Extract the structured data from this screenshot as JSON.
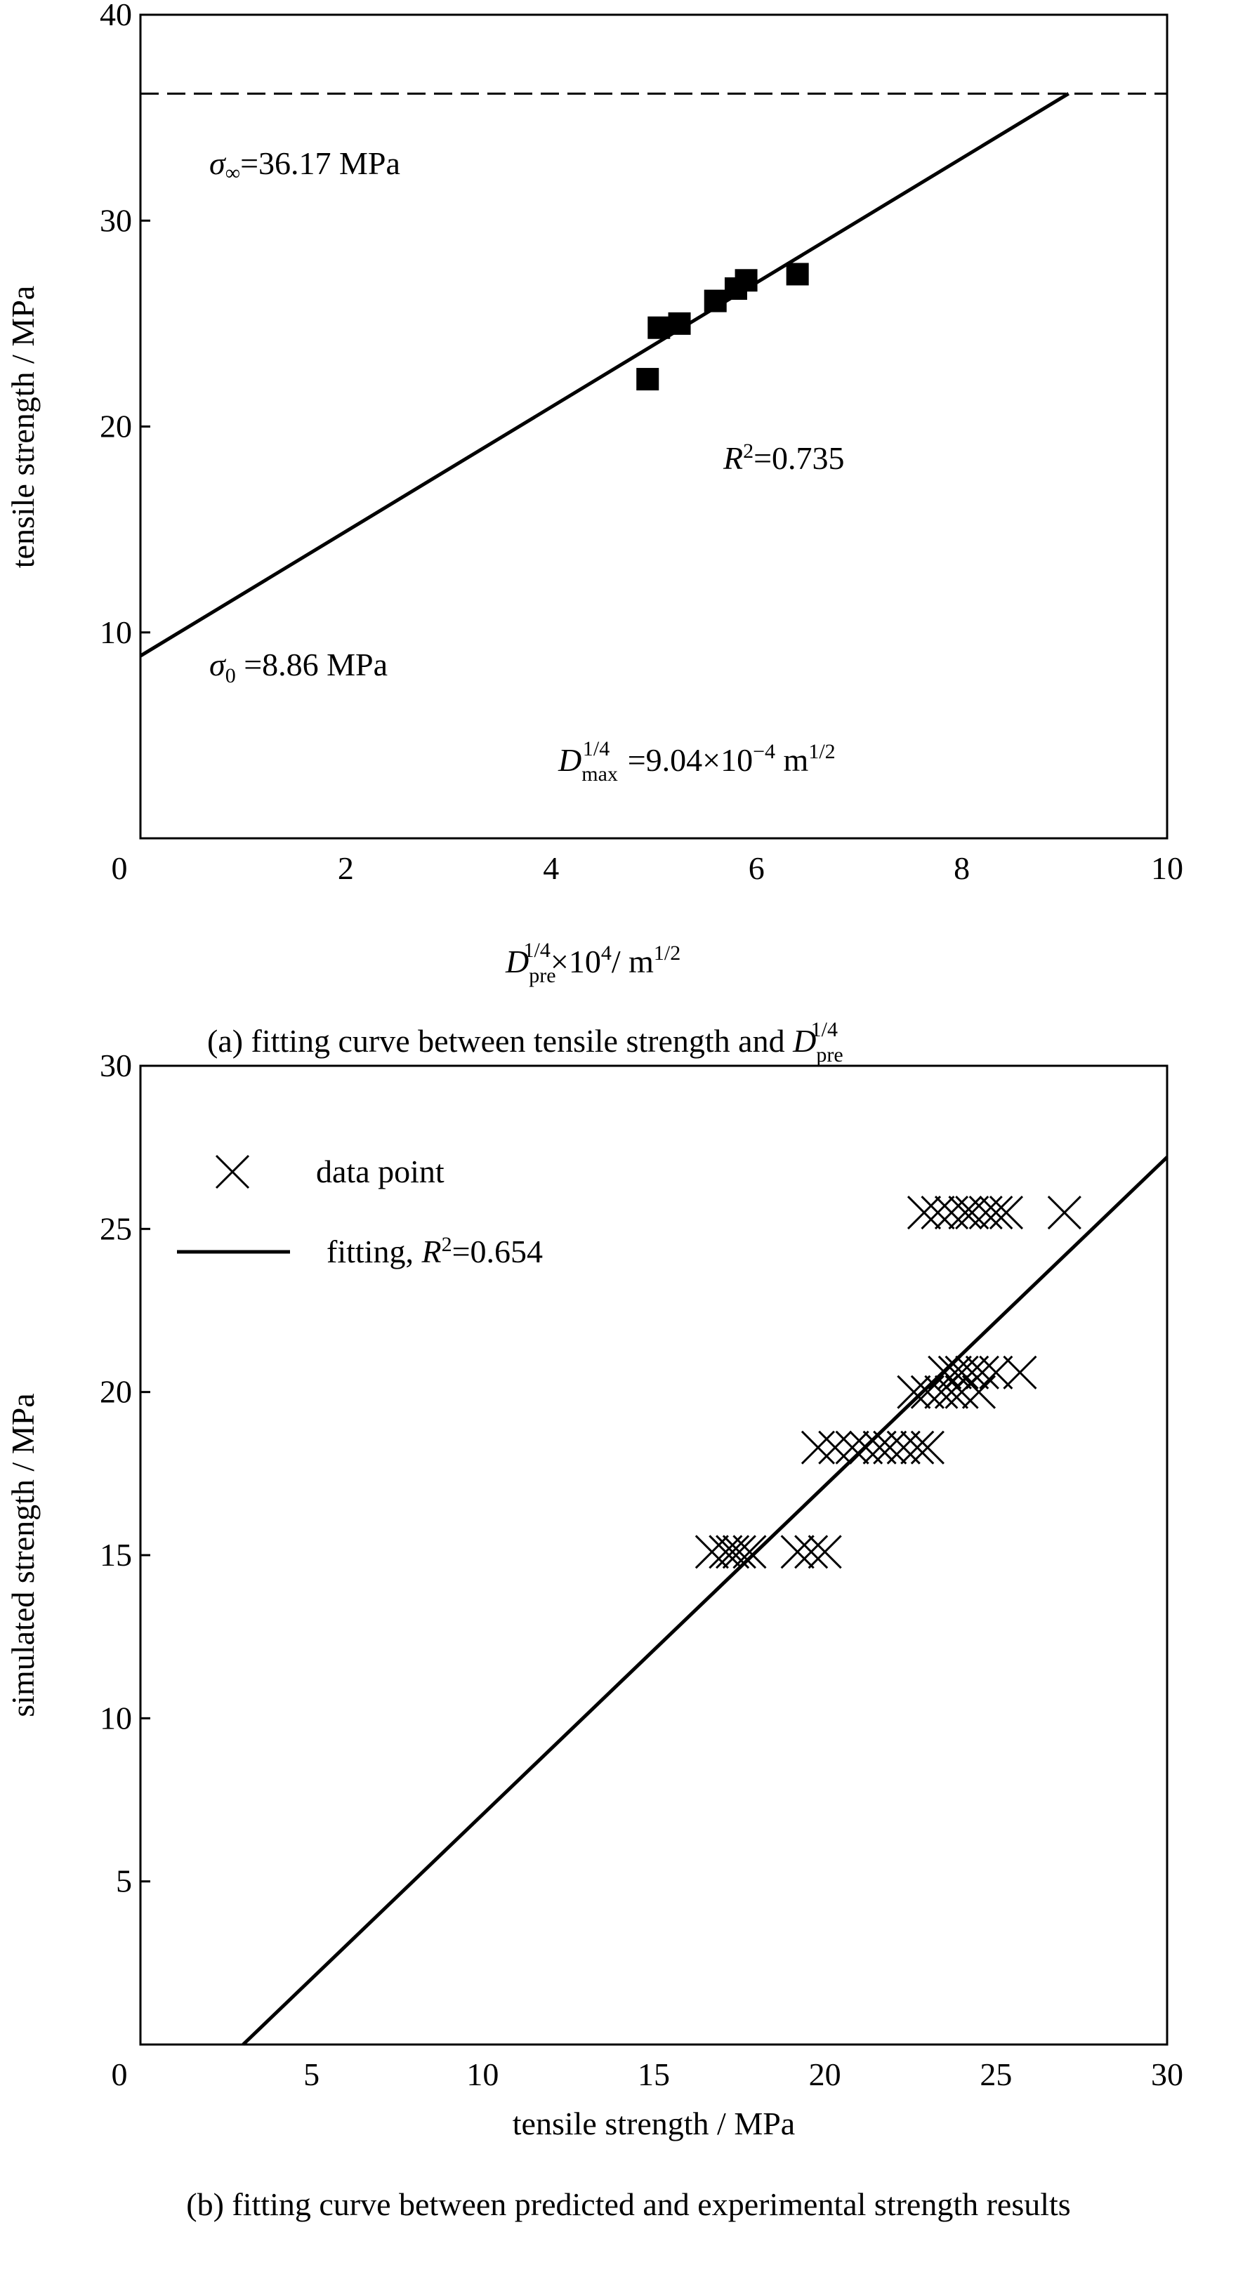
{
  "chart_data": [
    {
      "type": "scatter",
      "title": "(a) fitting curve between tensile strength and D_pre^1/4",
      "caption": {
        "text": "(a) fitting curve between tensile strength and ",
        "sym": "D",
        "sub": "pre",
        "sup": "1/4"
      },
      "xlabel": {
        "sym": "D",
        "sub": "pre",
        "sup": "1/4",
        "rest": "×10",
        "exp": "4",
        "unit": "/  m",
        "unit_sup": "1/2"
      },
      "ylabel": "tensile strength / MPa",
      "xlim": [
        0,
        10
      ],
      "ylim": [
        0,
        40
      ],
      "xticks": [
        "0",
        "2",
        "4",
        "6",
        "8",
        "10"
      ],
      "yticks": [
        "10",
        "20",
        "30",
        "40"
      ],
      "points": [
        [
          4.94,
          22.3
        ],
        [
          5.05,
          24.8
        ],
        [
          5.25,
          25.0
        ],
        [
          5.6,
          26.1
        ],
        [
          5.8,
          26.7
        ],
        [
          5.9,
          27.1
        ],
        [
          6.4,
          27.4
        ]
      ],
      "fit_line": {
        "x": [
          0,
          9.04
        ],
        "y": [
          8.86,
          36.17
        ]
      },
      "asymptote_y": 36.17,
      "annotations": {
        "sigma_inf": {
          "sym": "σ",
          "sub": "∞",
          "text": "=36.17 MPa"
        },
        "r2": {
          "sym": "R",
          "sup": "2",
          "text": "=0.735"
        },
        "sigma_0": {
          "sym": "σ",
          "sub": "0",
          "text": " =8.86 MPa"
        },
        "dmax": {
          "sym": "D",
          "sub": "max",
          "sup": "1/4",
          "text": " =9.04×10",
          "exp": "−4",
          "unit": " m",
          "unit_sup": "1/2"
        }
      }
    },
    {
      "type": "scatter",
      "title": "(b) fitting curve between predicted and experimental strength results",
      "caption": "(b) fitting curve between predicted and experimental strength results",
      "xlabel": "tensile strength / MPa",
      "ylabel": "simulated strength / MPa",
      "xlim": [
        0,
        30
      ],
      "ylim": [
        0,
        30
      ],
      "xticks": [
        "0",
        "5",
        "10",
        "15",
        "20",
        "25",
        "30"
      ],
      "yticks": [
        "5",
        "10",
        "15",
        "20",
        "25",
        "30"
      ],
      "legend": {
        "position": "top-left",
        "data_label": "data point",
        "fit_label": "fitting, ",
        "fit_sym": "R",
        "fit_sup": "2",
        "fit_value": "=0.654"
      },
      "points": [
        [
          22.9,
          25.5
        ],
        [
          23.3,
          25.5
        ],
        [
          23.7,
          25.5
        ],
        [
          24.1,
          25.5
        ],
        [
          24.3,
          25.5
        ],
        [
          24.7,
          25.5
        ],
        [
          25.0,
          25.5
        ],
        [
          25.3,
          25.5
        ],
        [
          27.0,
          25.5
        ],
        [
          23.5,
          20.6
        ],
        [
          23.8,
          20.6
        ],
        [
          24.0,
          20.6
        ],
        [
          24.3,
          20.6
        ],
        [
          24.6,
          20.6
        ],
        [
          25.0,
          20.6
        ],
        [
          25.7,
          20.6
        ],
        [
          22.6,
          20.0
        ],
        [
          23.0,
          20.0
        ],
        [
          23.4,
          20.0
        ],
        [
          23.7,
          20.0
        ],
        [
          24.0,
          20.0
        ],
        [
          24.5,
          20.0
        ],
        [
          19.8,
          18.3
        ],
        [
          20.3,
          18.3
        ],
        [
          20.8,
          18.3
        ],
        [
          21.2,
          18.3
        ],
        [
          21.6,
          18.3
        ],
        [
          21.9,
          18.3
        ],
        [
          22.3,
          18.3
        ],
        [
          22.7,
          18.3
        ],
        [
          23.0,
          18.3
        ],
        [
          16.7,
          15.1
        ],
        [
          17.1,
          15.1
        ],
        [
          17.3,
          15.1
        ],
        [
          17.5,
          15.1
        ],
        [
          17.8,
          15.1
        ],
        [
          19.2,
          15.1
        ],
        [
          19.6,
          15.1
        ],
        [
          20.0,
          15.1
        ]
      ],
      "fit_line": {
        "x": [
          3.0,
          30
        ],
        "y": [
          0,
          27.2
        ]
      }
    }
  ]
}
